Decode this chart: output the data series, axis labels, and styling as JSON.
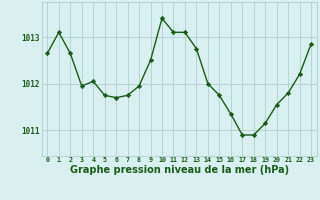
{
  "x": [
    0,
    1,
    2,
    3,
    4,
    5,
    6,
    7,
    8,
    9,
    10,
    11,
    12,
    13,
    14,
    15,
    16,
    17,
    18,
    19,
    20,
    21,
    22,
    23
  ],
  "y": [
    1012.65,
    1013.1,
    1012.65,
    1011.95,
    1012.05,
    1011.75,
    1011.7,
    1011.75,
    1011.95,
    1012.5,
    1013.4,
    1013.1,
    1013.1,
    1012.75,
    1012.0,
    1011.75,
    1011.35,
    1010.9,
    1010.9,
    1011.15,
    1011.55,
    1011.8,
    1012.2,
    1012.85
  ],
  "line_color": "#1a5c1a",
  "marker": "D",
  "markersize": 2.2,
  "linewidth": 1.0,
  "bg_color": "#d8f0f0",
  "grid_color": "#b0d0d0",
  "xlabel": "Graphe pression niveau de la mer (hPa)",
  "xlabel_color": "#1a5c1a",
  "xlabel_fontsize": 7.0,
  "tick_color": "#1a5c1a",
  "ytick_labels": [
    "1011",
    "1012",
    "1013"
  ],
  "ytick_values": [
    1011,
    1012,
    1013
  ],
  "ylim": [
    1010.45,
    1013.75
  ],
  "xlim": [
    -0.5,
    23.5
  ],
  "xtick_fontsize": 4.8,
  "ytick_fontsize": 5.5
}
